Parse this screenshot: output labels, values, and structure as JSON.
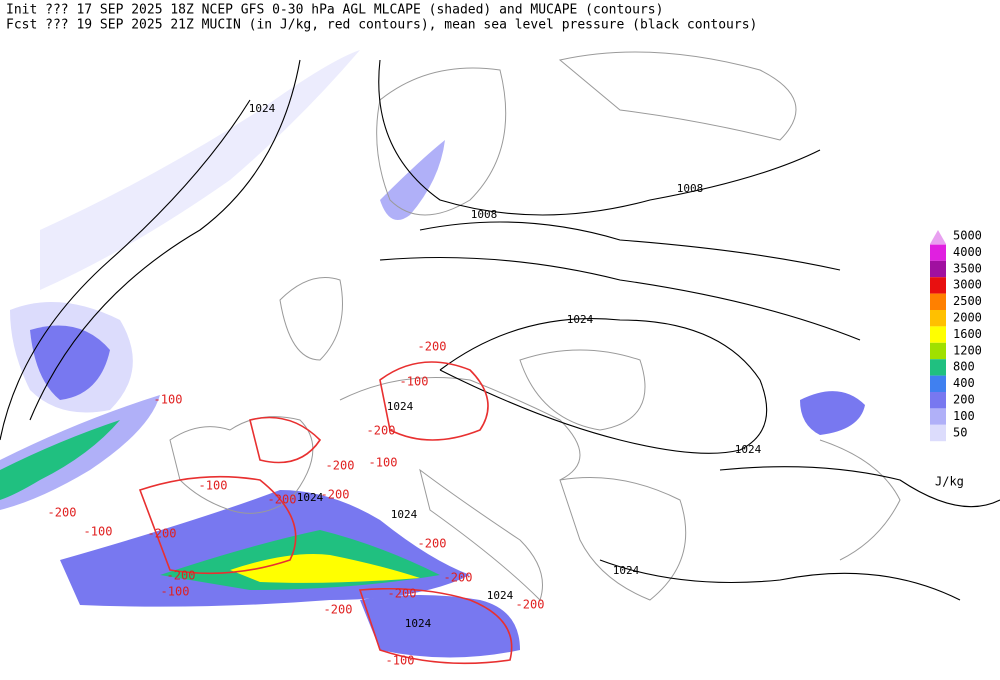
{
  "header": {
    "line1": "Init  ??? 17 SEP 2025 18Z  NCEP GFS 0-30 hPa AGL MLCAPE (shaded) and MUCAPE (contours)",
    "line2": "Fcst ??? 19 SEP 2025 21Z  MUCIN (in J/kg, red contours), mean sea level pressure (black contours)"
  },
  "legend": {
    "levels": [
      5000,
      4000,
      3500,
      3000,
      2500,
      2000,
      1600,
      1200,
      800,
      400,
      200,
      100,
      50
    ],
    "colors": [
      "#e8a0f0",
      "#e020e0",
      "#a010a0",
      "#e81010",
      "#ff8000",
      "#ffc000",
      "#ffff00",
      "#a0e000",
      "#20c080",
      "#4080f0",
      "#7878f0",
      "#b0b0f8",
      "#dcdcfc"
    ],
    "unit": "J/kg"
  },
  "pressure_labels": [
    1024,
    1008,
    1008,
    1024,
    1024,
    1024,
    1024,
    1024,
    1024,
    1024,
    1024
  ],
  "cin_labels": [
    -200,
    -100,
    -100,
    -200,
    -100,
    -200,
    -100,
    -200,
    -200,
    -200,
    -100,
    -200,
    -200,
    -200,
    -200,
    -100,
    -200,
    -200,
    -200,
    -100
  ]
}
